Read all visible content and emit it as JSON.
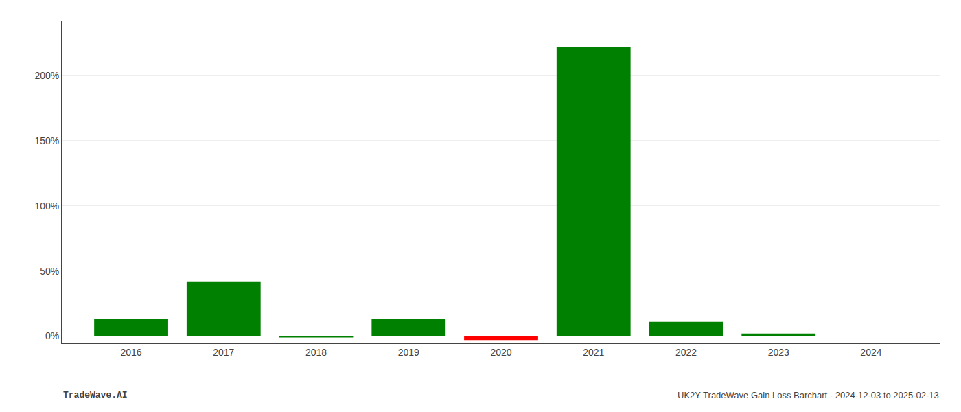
{
  "chart_data": {
    "type": "bar",
    "x": [
      2016,
      2017,
      2018,
      2019,
      2020,
      2021,
      2022,
      2023,
      2024
    ],
    "values": [
      0.13,
      0.42,
      -0.01,
      0.13,
      -0.03,
      2.22,
      0.11,
      0.02,
      0.0
    ],
    "colors": [
      "#008000",
      "#008000",
      "#008000",
      "#008000",
      "#FF0000",
      "#008000",
      "#008000",
      "#008000",
      "#008000"
    ],
    "xlim": [
      2015.25,
      2024.75
    ],
    "xticks": [
      2016,
      2017,
      2018,
      2019,
      2020,
      2021,
      2022,
      2023,
      2024
    ],
    "ylim": [
      -0.055,
      2.42
    ],
    "yticks": [
      {
        "value": 0.0,
        "label": "0%"
      },
      {
        "value": 0.5,
        "label": "50%"
      },
      {
        "value": 1.0,
        "label": "100%"
      },
      {
        "value": 1.5,
        "label": "150%"
      },
      {
        "value": 2.0,
        "label": "200%"
      }
    ],
    "grid": true,
    "annotations": [
      "TradeWave.AI",
      "UK2Y TradeWave Gain Loss Barchart - 2024-12-03 to 2025-02-13"
    ]
  }
}
